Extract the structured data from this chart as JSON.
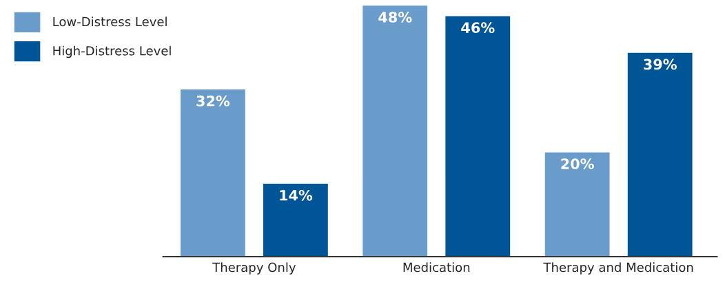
{
  "chart_data": {
    "type": "bar",
    "categories": [
      "Therapy Only",
      "Medication",
      "Therapy and Medication"
    ],
    "series": [
      {
        "name": "Low-Distress Level",
        "color": "#6a9ccb",
        "values": [
          32,
          48,
          20
        ],
        "value_labels": [
          "32%",
          "48%",
          "20%"
        ]
      },
      {
        "name": "High-Distress Level",
        "color": "#005596",
        "values": [
          14,
          46,
          39
        ],
        "value_labels": [
          "14%",
          "46%",
          "39%"
        ]
      }
    ],
    "legend": "top left",
    "grid": false
  }
}
